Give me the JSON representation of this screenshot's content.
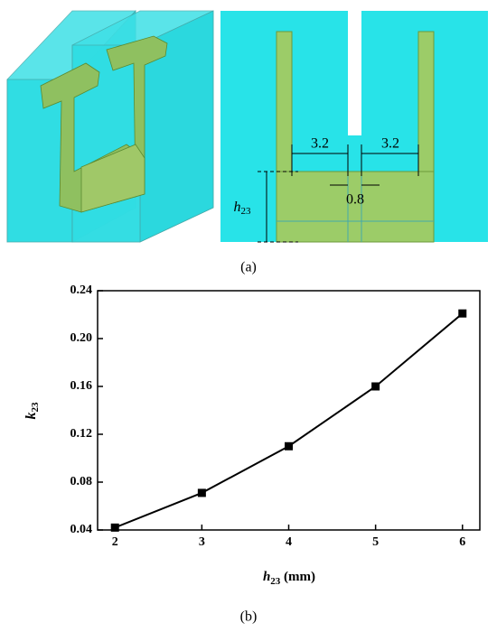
{
  "figure_a": {
    "label": "(a)",
    "dims": [
      "3.2",
      "3.2",
      "0.8"
    ],
    "height_label": {
      "main": "h",
      "sub": "23"
    }
  },
  "chart_data": {
    "type": "line",
    "label": "(b)",
    "x": [
      2,
      3,
      4,
      5,
      6
    ],
    "series": [
      {
        "values": [
          0.042,
          0.071,
          0.11,
          0.16,
          0.221
        ],
        "color": "#000000"
      }
    ],
    "xlim": [
      1.8,
      6.2
    ],
    "ylim": [
      0.04,
      0.24
    ],
    "xticks": [
      2,
      3,
      4,
      5,
      6
    ],
    "yticks": [
      0.04,
      0.08,
      {
        "value": 0.12,
        "label": "0.12"
      },
      0.16,
      {
        "value": 0.2,
        "label": "0.20"
      },
      0.24
    ],
    "xlabel_parts": [
      "h",
      "23",
      " (mm)"
    ],
    "ylabel_parts": [
      "k",
      "23"
    ]
  }
}
